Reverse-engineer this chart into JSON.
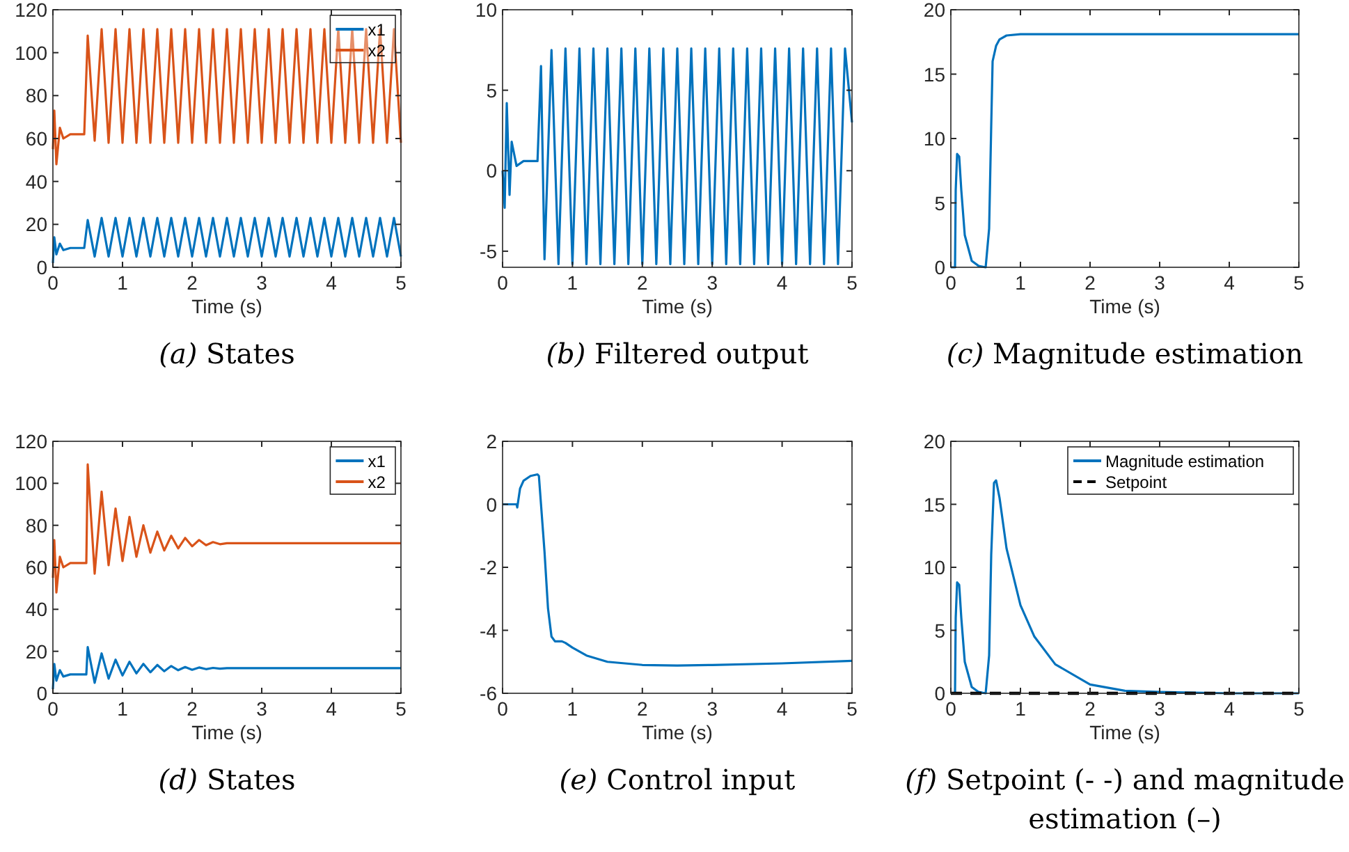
{
  "chart_data": [
    {
      "type": "line",
      "title": "(a) States",
      "xlabel": "Time (s)",
      "xlim": [
        0,
        5
      ],
      "xticks": [
        0,
        1,
        2,
        3,
        4,
        5
      ],
      "ylim": [
        0,
        120
      ],
      "yticks": [
        0,
        20,
        40,
        60,
        80,
        100,
        120
      ],
      "legend": "top right",
      "grid": false,
      "x": [
        0,
        0.02,
        0.05,
        0.1,
        0.15,
        0.25,
        0.45,
        0.5,
        0.6,
        0.7,
        0.8,
        0.9,
        1,
        1.1,
        1.2,
        1.3,
        1.4,
        1.5,
        1.6,
        1.7,
        1.8,
        1.9,
        2,
        2.1,
        2.2,
        2.3,
        2.4,
        2.5,
        2.6,
        2.7,
        2.8,
        2.9,
        3,
        3.1,
        3.2,
        3.3,
        3.4,
        3.5,
        3.6,
        3.7,
        3.8,
        3.9,
        4,
        4.1,
        4.2,
        4.3,
        4.4,
        4.5,
        4.6,
        4.7,
        4.8,
        4.9,
        5
      ],
      "series": [
        {
          "name": "x1",
          "color": "#0072bd",
          "values": [
            2,
            14,
            6,
            11,
            8,
            9,
            9,
            22,
            5,
            23,
            5,
            23,
            5,
            23,
            5,
            23,
            5,
            23,
            5,
            23,
            5,
            23,
            5,
            23,
            5,
            23,
            5,
            23,
            5,
            23,
            5,
            23,
            5,
            23,
            5,
            23,
            5,
            23,
            5,
            23,
            5,
            23,
            5,
            23,
            5,
            23,
            5,
            23,
            5,
            23,
            5,
            23,
            5
          ]
        },
        {
          "name": "x2",
          "color": "#d95319",
          "values": [
            55,
            73,
            48,
            65,
            60,
            62,
            62,
            108,
            59,
            111,
            58,
            111,
            58,
            111,
            58,
            111,
            58,
            111,
            58,
            111,
            58,
            111,
            58,
            111,
            58,
            111,
            58,
            111,
            58,
            111,
            58,
            111,
            58,
            111,
            58,
            111,
            58,
            111,
            58,
            111,
            58,
            111,
            58,
            111,
            58,
            111,
            58,
            111,
            58,
            111,
            58,
            111,
            58
          ]
        }
      ]
    },
    {
      "type": "line",
      "title": "(b) Filtered output",
      "xlabel": "Time (s)",
      "xlim": [
        0,
        5
      ],
      "xticks": [
        0,
        1,
        2,
        3,
        4,
        5
      ],
      "ylim": [
        -6,
        10
      ],
      "yticks": [
        -5,
        0,
        5,
        10
      ],
      "grid": false,
      "x": [
        0,
        0.03,
        0.06,
        0.1,
        0.13,
        0.2,
        0.3,
        0.5,
        0.55,
        0.6,
        0.7,
        0.8,
        0.9,
        1,
        1.1,
        1.2,
        1.3,
        1.4,
        1.5,
        1.6,
        1.7,
        1.8,
        1.9,
        2,
        2.1,
        2.2,
        2.3,
        2.4,
        2.5,
        2.6,
        2.7,
        2.8,
        2.9,
        3,
        3.1,
        3.2,
        3.3,
        3.4,
        3.5,
        3.6,
        3.7,
        3.8,
        3.9,
        4,
        4.1,
        4.2,
        4.3,
        4.4,
        4.5,
        4.6,
        4.7,
        4.8,
        4.9,
        5
      ],
      "series": [
        {
          "color": "#0072bd",
          "values": [
            0,
            -2.3,
            4.2,
            -1.5,
            1.8,
            0.3,
            0.6,
            0.6,
            6.5,
            -5.5,
            7.5,
            -5.8,
            7.6,
            -5.8,
            7.6,
            -5.8,
            7.6,
            -5.8,
            7.6,
            -5.8,
            7.6,
            -5.8,
            7.6,
            -5.8,
            7.6,
            -5.8,
            7.6,
            -5.8,
            7.6,
            -5.8,
            7.6,
            -5.8,
            7.6,
            -5.8,
            7.6,
            -5.8,
            7.6,
            -5.8,
            7.6,
            -5.8,
            7.6,
            -5.8,
            7.6,
            -5.8,
            7.6,
            -5.8,
            7.6,
            -5.8,
            7.6,
            -5.8,
            7.6,
            -5.8,
            7.6,
            3
          ]
        }
      ]
    },
    {
      "type": "line",
      "title": "(c) Magnitude estimation",
      "xlabel": "Time (s)",
      "xlim": [
        0,
        5
      ],
      "xticks": [
        0,
        1,
        2,
        3,
        4,
        5
      ],
      "ylim": [
        0,
        20
      ],
      "yticks": [
        0,
        5,
        10,
        15,
        20
      ],
      "grid": false,
      "x": [
        0,
        0.06,
        0.07,
        0.09,
        0.12,
        0.15,
        0.2,
        0.3,
        0.4,
        0.5,
        0.55,
        0.58,
        0.6,
        0.65,
        0.7,
        0.8,
        1,
        1.5,
        5
      ],
      "series": [
        {
          "color": "#0072bd",
          "values": [
            0,
            0,
            6,
            8.8,
            8.6,
            6,
            2.5,
            0.5,
            0.1,
            0,
            3,
            11,
            16,
            17.2,
            17.7,
            18,
            18.1,
            18.1,
            18.1
          ]
        }
      ]
    },
    {
      "type": "line",
      "title": "(d) States",
      "xlabel": "Time (s)",
      "xlim": [
        0,
        5
      ],
      "xticks": [
        0,
        1,
        2,
        3,
        4,
        5
      ],
      "ylim": [
        0,
        120
      ],
      "yticks": [
        0,
        20,
        40,
        60,
        80,
        100,
        120
      ],
      "legend": "top right",
      "grid": false,
      "x": [
        0,
        0.02,
        0.05,
        0.1,
        0.15,
        0.25,
        0.48,
        0.5,
        0.6,
        0.7,
        0.8,
        0.9,
        1,
        1.1,
        1.2,
        1.3,
        1.4,
        1.5,
        1.6,
        1.7,
        1.8,
        1.9,
        2,
        2.1,
        2.2,
        2.3,
        2.4,
        2.5,
        3,
        4,
        5
      ],
      "series": [
        {
          "name": "x1",
          "color": "#0072bd",
          "values": [
            2,
            14,
            6,
            11,
            8,
            9,
            9,
            22,
            5,
            19,
            7,
            16,
            8.5,
            15,
            9.5,
            14,
            10,
            13.5,
            10.5,
            13,
            11,
            12.5,
            11.2,
            12.3,
            11.5,
            12.1,
            11.7,
            12,
            12,
            12,
            12
          ]
        },
        {
          "name": "x2",
          "color": "#d95319",
          "values": [
            55,
            73,
            48,
            65,
            60,
            62,
            62,
            109,
            57,
            96,
            61,
            88,
            63,
            84,
            65,
            80,
            67,
            77,
            68,
            75,
            69,
            74,
            70,
            73,
            70.5,
            72,
            71,
            71.5,
            71.5,
            71.5,
            71.5
          ]
        }
      ]
    },
    {
      "type": "line",
      "title": "(e) Control input",
      "xlabel": "Time (s)",
      "xlim": [
        0,
        5
      ],
      "xticks": [
        0,
        1,
        2,
        3,
        4,
        5
      ],
      "ylim": [
        -6,
        2
      ],
      "yticks": [
        -6,
        -4,
        -2,
        0,
        2
      ],
      "grid": false,
      "x": [
        0,
        0.2,
        0.21,
        0.25,
        0.3,
        0.4,
        0.5,
        0.52,
        0.55,
        0.6,
        0.65,
        0.7,
        0.75,
        0.85,
        0.9,
        1,
        1.2,
        1.5,
        2,
        2.5,
        3,
        4,
        5
      ],
      "series": [
        {
          "color": "#0072bd",
          "values": [
            0,
            0,
            -0.1,
            0.5,
            0.75,
            0.9,
            0.95,
            0.9,
            0,
            -1.5,
            -3.3,
            -4.2,
            -4.35,
            -4.35,
            -4.4,
            -4.55,
            -4.8,
            -5,
            -5.1,
            -5.12,
            -5.1,
            -5.05,
            -4.97
          ]
        }
      ]
    },
    {
      "type": "line",
      "title": "(f) Setpoint (- -) and magnitude estimation (–)",
      "xlabel": "Time (s)",
      "xlim": [
        0,
        5
      ],
      "xticks": [
        0,
        1,
        2,
        3,
        4,
        5
      ],
      "ylim": [
        0,
        20
      ],
      "yticks": [
        0,
        5,
        10,
        15,
        20
      ],
      "legend": "top right",
      "grid": false,
      "series": [
        {
          "name": "Magnitude estimation",
          "color": "#0072bd",
          "x": [
            0,
            0.06,
            0.07,
            0.09,
            0.12,
            0.15,
            0.2,
            0.3,
            0.4,
            0.5,
            0.55,
            0.58,
            0.62,
            0.65,
            0.7,
            0.8,
            1,
            1.2,
            1.5,
            2,
            2.5,
            3,
            4,
            5
          ],
          "values": [
            0,
            0,
            6,
            8.8,
            8.6,
            6,
            2.5,
            0.5,
            0.1,
            0,
            3,
            11,
            16.7,
            16.9,
            15.5,
            11.5,
            7,
            4.5,
            2.3,
            0.7,
            0.2,
            0.1,
            0,
            0
          ]
        },
        {
          "name": "Setpoint",
          "color": "#000000",
          "line_style": "dashed",
          "x": [
            0,
            5
          ],
          "values": [
            0,
            0
          ]
        }
      ]
    }
  ]
}
